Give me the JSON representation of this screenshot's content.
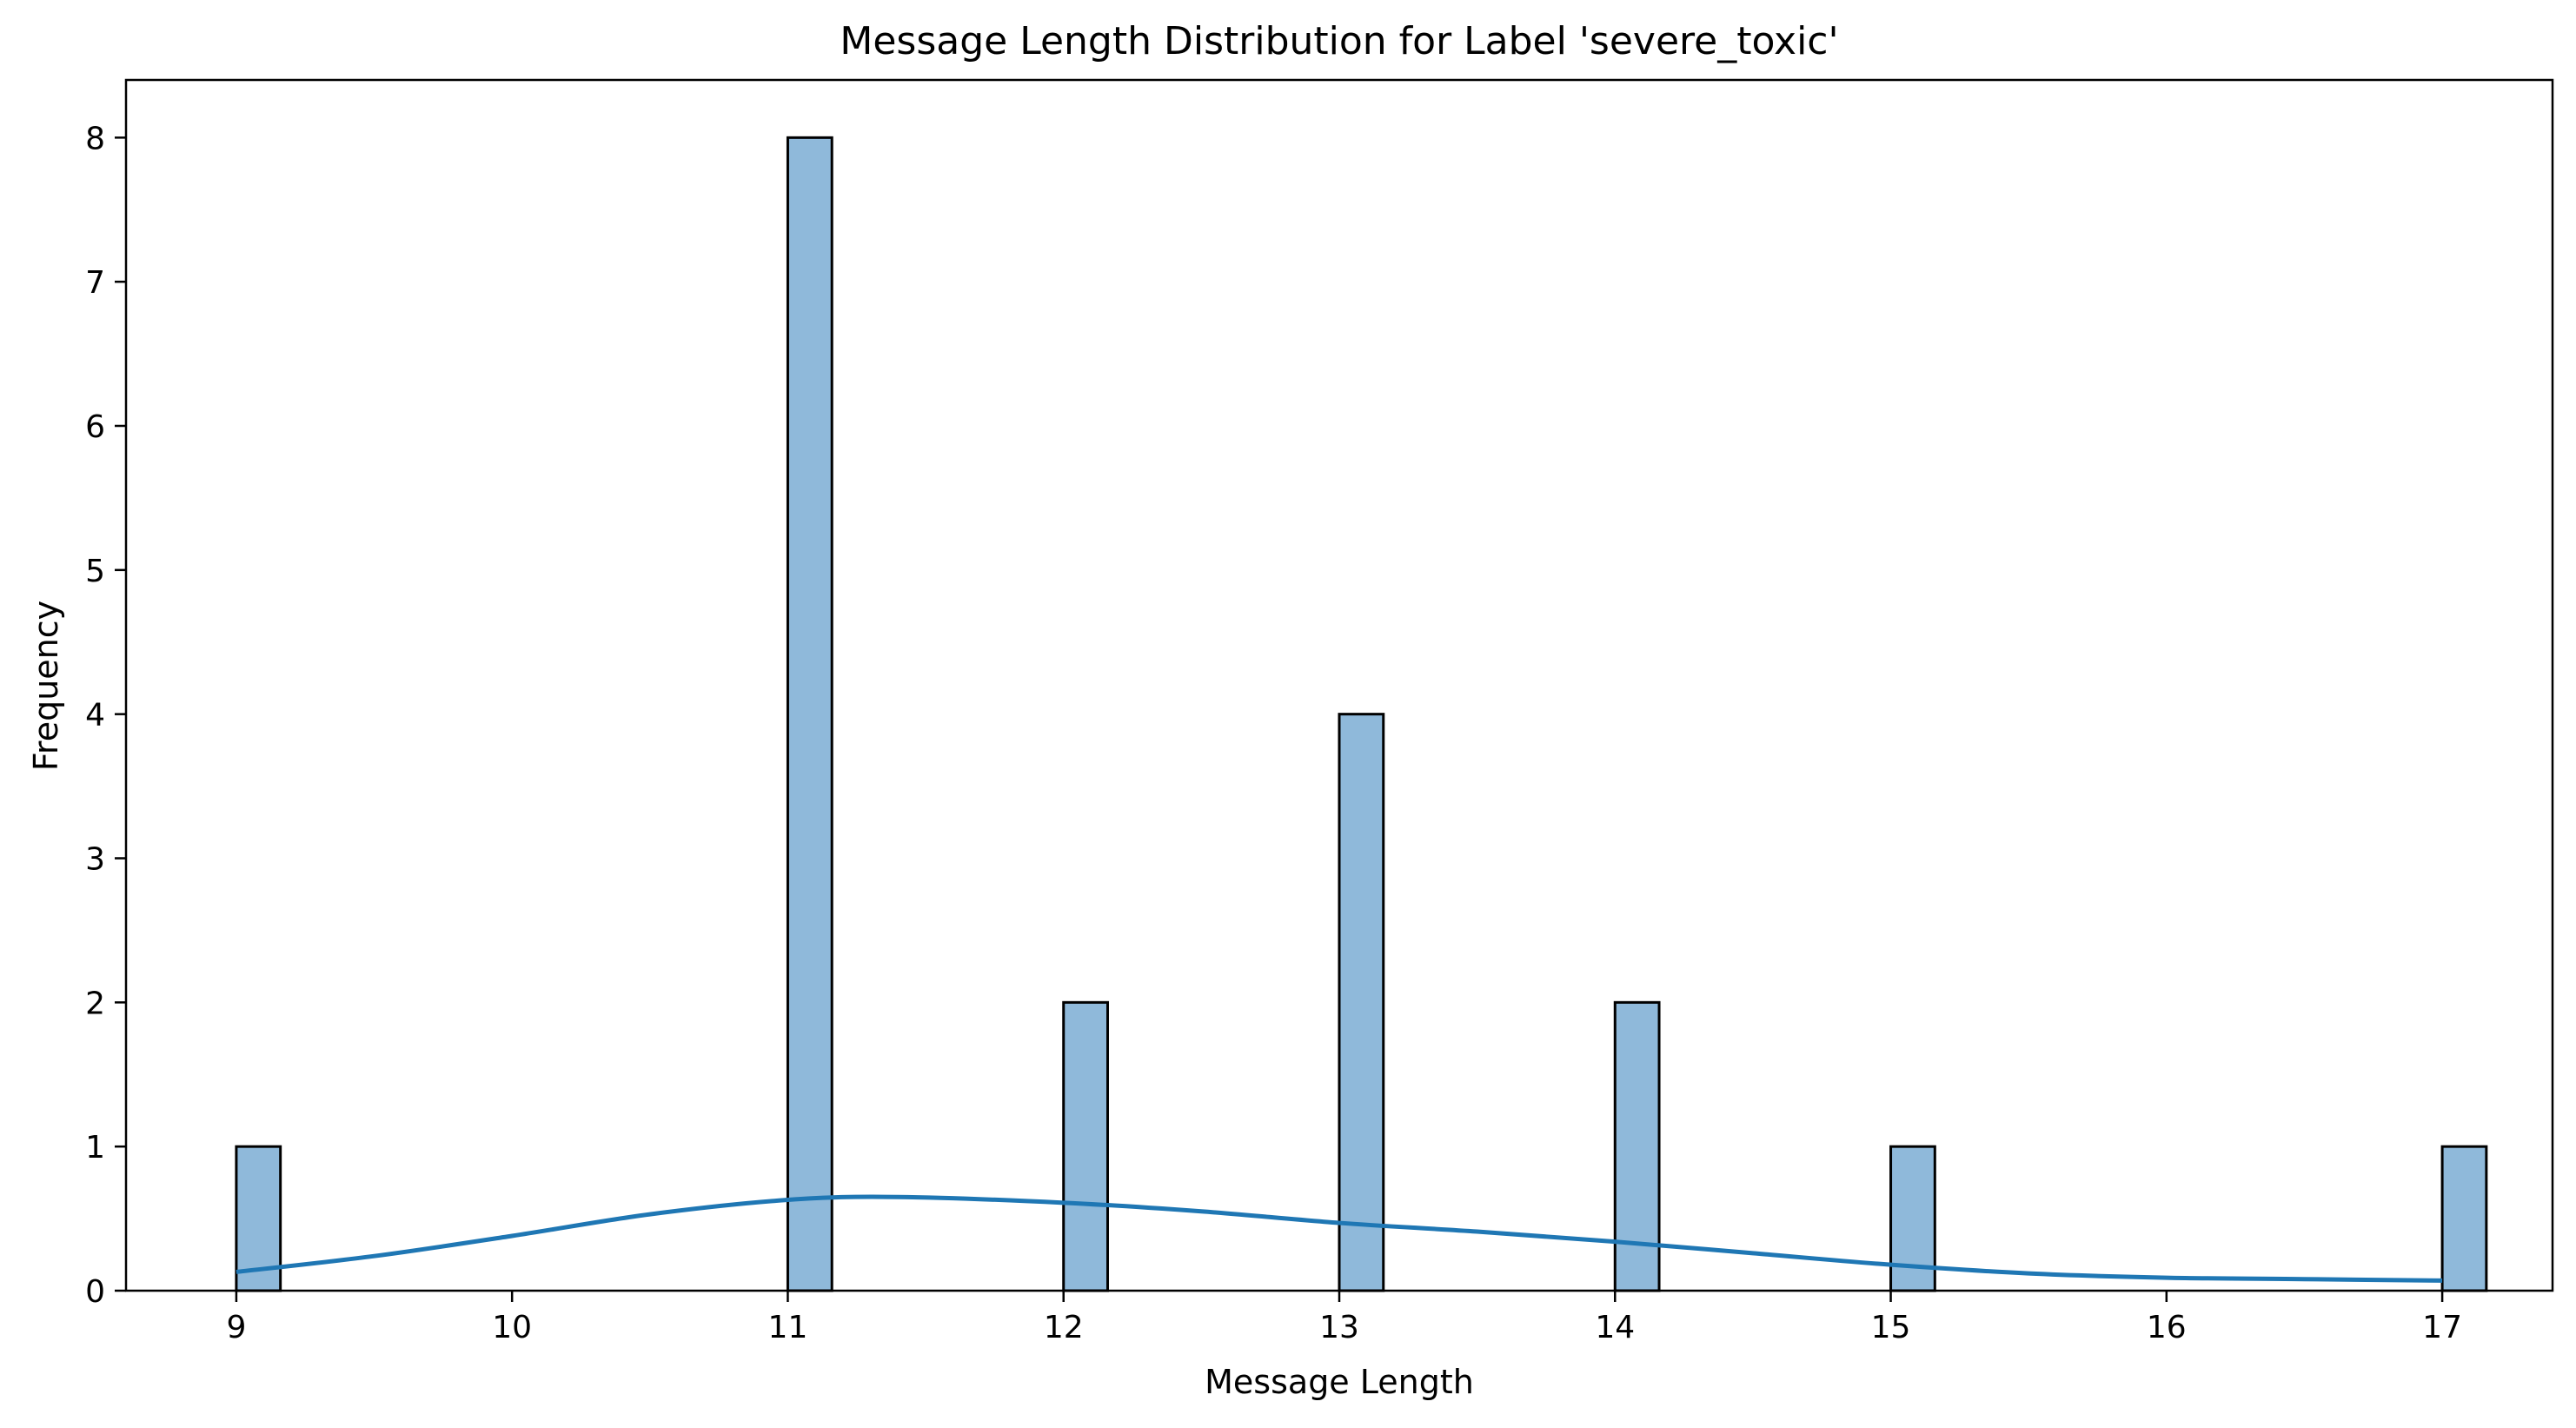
{
  "chart_data": {
    "type": "bar",
    "title": "Message Length Distribution for Label 'severe_toxic'",
    "xlabel": "Message Length",
    "ylabel": "Frequency",
    "xlim": [
      8.6,
      17.4
    ],
    "ylim": [
      0,
      8.4
    ],
    "xticks": [
      9,
      10,
      11,
      12,
      13,
      14,
      15,
      16,
      17
    ],
    "yticks": [
      0,
      1,
      2,
      3,
      4,
      5,
      6,
      7,
      8
    ],
    "bin_width": 0.16,
    "bars": [
      {
        "x": 9,
        "value": 1
      },
      {
        "x": 11,
        "value": 8
      },
      {
        "x": 12,
        "value": 2
      },
      {
        "x": 13,
        "value": 4
      },
      {
        "x": 14,
        "value": 2
      },
      {
        "x": 15,
        "value": 1
      },
      {
        "x": 17,
        "value": 1
      }
    ],
    "kde": {
      "x": [
        9.0,
        9.5,
        10.0,
        10.5,
        11.0,
        11.4,
        12.0,
        12.5,
        13.0,
        13.5,
        14.0,
        14.5,
        15.0,
        15.5,
        16.0,
        16.5,
        17.0
      ],
      "y": [
        0.13,
        0.24,
        0.38,
        0.53,
        0.63,
        0.65,
        0.61,
        0.55,
        0.47,
        0.41,
        0.34,
        0.26,
        0.18,
        0.12,
        0.09,
        0.08,
        0.07
      ]
    },
    "colors": {
      "bar_fill": "#8fb9da",
      "bar_edge": "#000000",
      "kde_line": "#1f77b4"
    },
    "grid": false,
    "legend": "none"
  }
}
